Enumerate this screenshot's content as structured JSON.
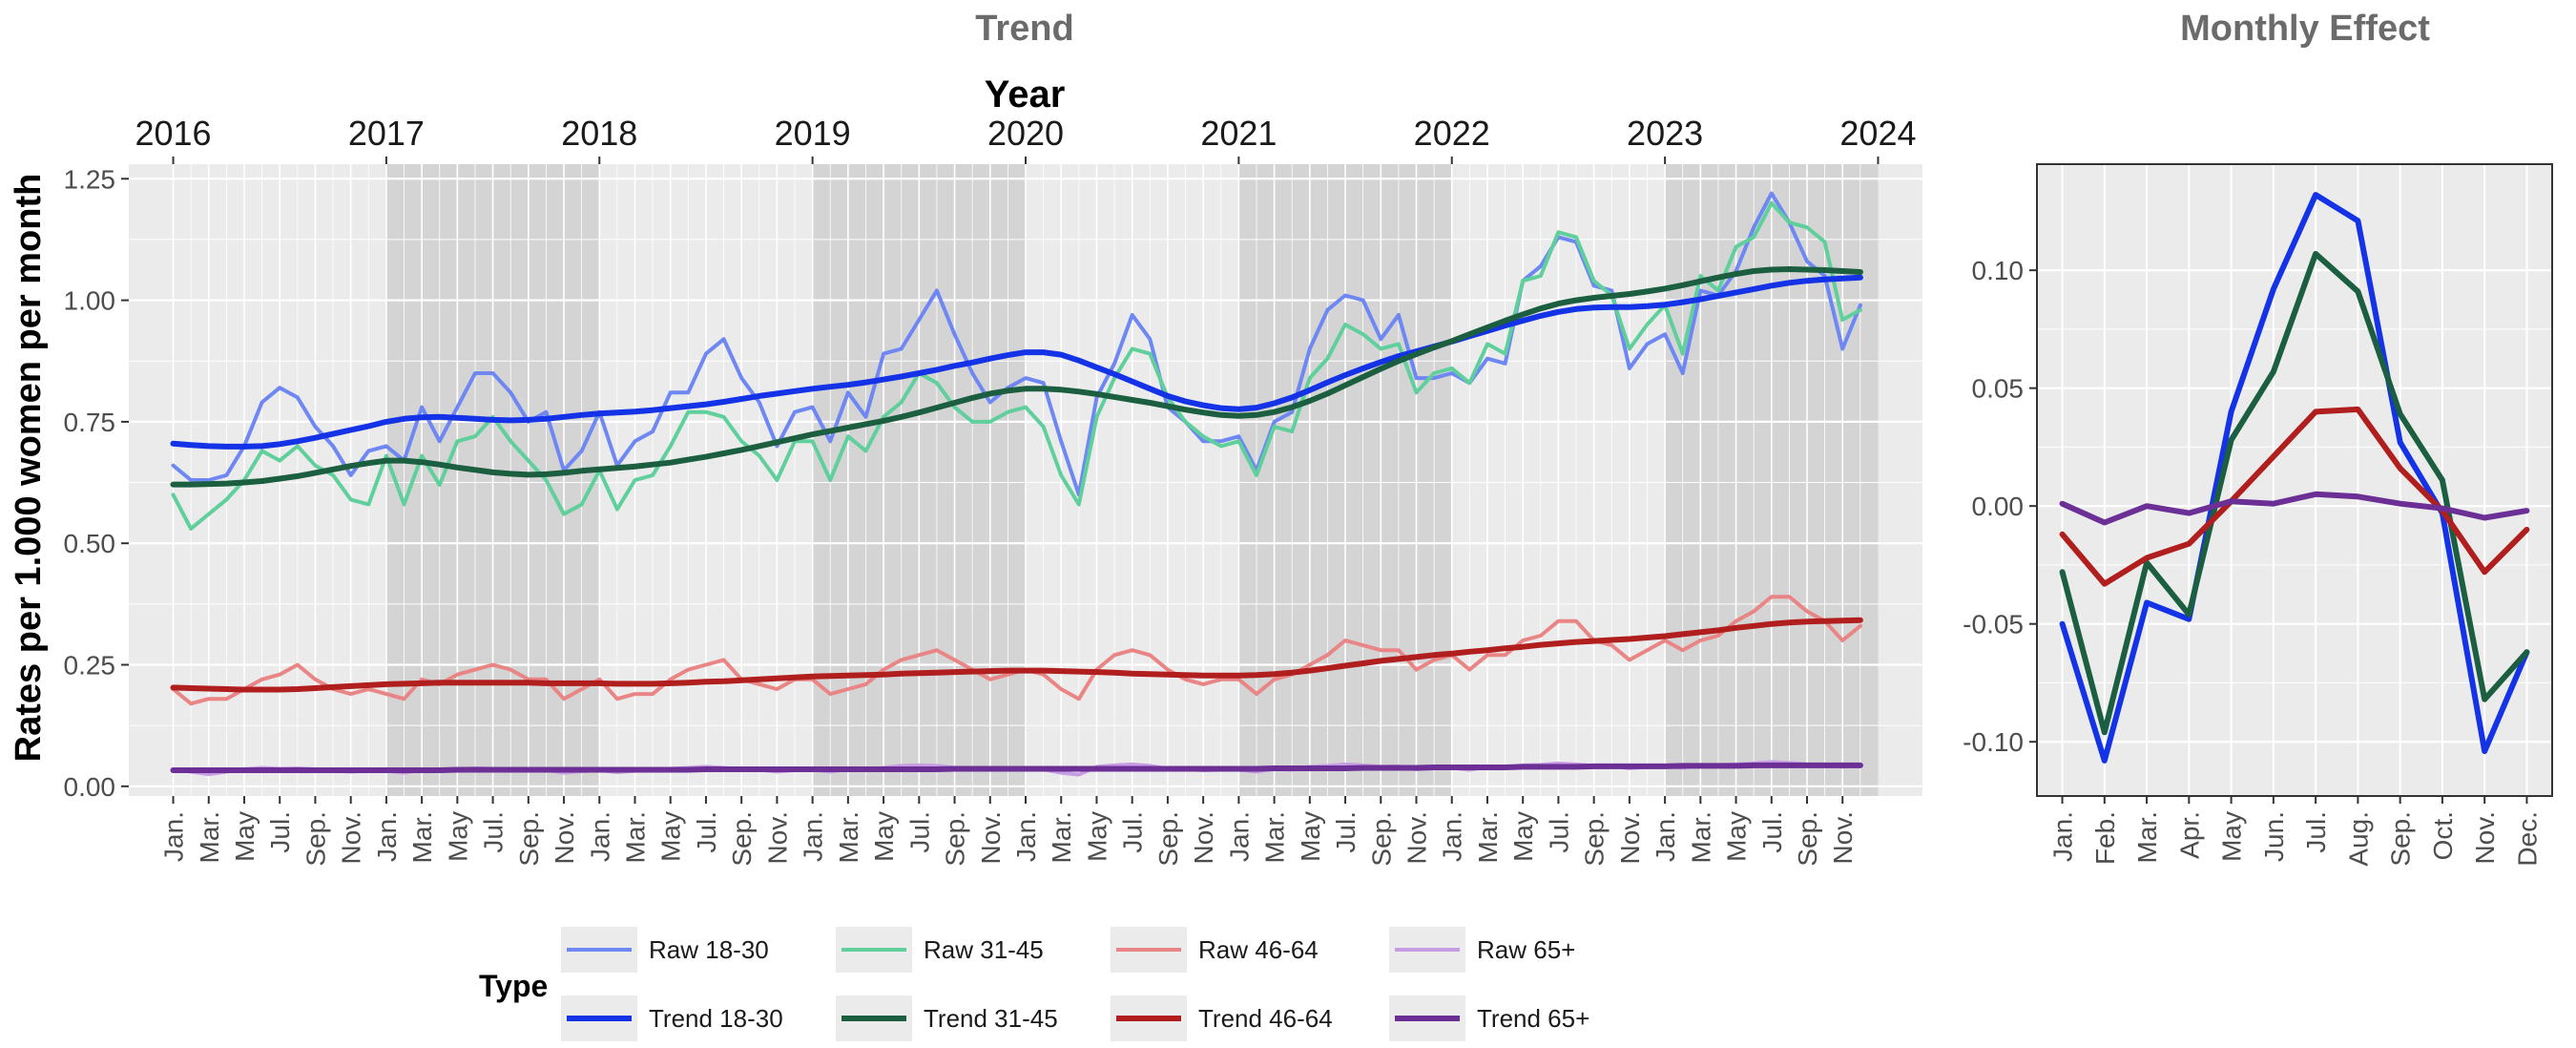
{
  "colors": {
    "raw_18_30": "#6E87F2",
    "trend_18_30": "#1432E6",
    "raw_31_45": "#5FCF9B",
    "trend_31_45": "#1B5E40",
    "raw_46_64": "#E98585",
    "trend_46_64": "#B01E1E",
    "raw_65": "#C89CE3",
    "trend_65": "#6B2F96",
    "panel_bg": "#EBEBEB",
    "shade": "#D4D4D4",
    "grid": "#FFFFFF",
    "title": "#6B6B6B",
    "tick": "#4D4D4D"
  },
  "legend": {
    "title": "Type",
    "items": [
      {
        "label": "Raw 18-30",
        "color": "#6E87F2"
      },
      {
        "label": "Raw 31-45",
        "color": "#5FCF9B"
      },
      {
        "label": "Raw 46-64",
        "color": "#E98585"
      },
      {
        "label": "Raw 65+",
        "color": "#C89CE3"
      },
      {
        "label": "Trend 18-30",
        "color": "#1432E6"
      },
      {
        "label": "Trend 31-45",
        "color": "#1B5E40"
      },
      {
        "label": "Trend 46-64",
        "color": "#B01E1E"
      },
      {
        "label": "Trend 65+",
        "color": "#6B2F96"
      }
    ]
  },
  "chart_data": [
    {
      "type": "line",
      "title": "Trend",
      "top_axis_label": "Year",
      "ylabel": "Rates per 1.000 women per month",
      "xlabel": "",
      "ylim": [
        -0.02,
        1.28
      ],
      "x_unit": "month index from Jan. 2016 (0 = Jan. 2016)",
      "xlim": [
        -2.5,
        98.5
      ],
      "year_ticks": [
        "2016",
        "2017",
        "2018",
        "2019",
        "2020",
        "2021",
        "2022",
        "2023",
        "2024"
      ],
      "year_tick_positions": [
        0,
        12,
        24,
        36,
        48,
        60,
        72,
        84,
        96
      ],
      "shaded_year_bands": [
        [
          12,
          24
        ],
        [
          36,
          48
        ],
        [
          60,
          72
        ],
        [
          84,
          96
        ]
      ],
      "month_tick_labels": [
        "Jan.",
        "Mar.",
        "May",
        "Jul.",
        "Sep.",
        "Nov."
      ],
      "y_ticks": [
        0.0,
        0.25,
        0.5,
        0.75,
        1.0,
        1.25
      ],
      "y_tick_labels": [
        "0.00",
        "0.25",
        "0.50",
        "0.75",
        "1.00",
        "1.25"
      ],
      "grid": true,
      "legend_position": "bottom",
      "series": [
        {
          "name": "Raw 18-30",
          "color": "#6E87F2",
          "width": 4,
          "values": [
            0.66,
            0.63,
            0.63,
            0.64,
            0.7,
            0.79,
            0.82,
            0.8,
            0.74,
            0.7,
            0.64,
            0.69,
            0.7,
            0.67,
            0.78,
            0.71,
            0.78,
            0.85,
            0.85,
            0.81,
            0.75,
            0.77,
            0.65,
            0.69,
            0.77,
            0.66,
            0.71,
            0.73,
            0.81,
            0.81,
            0.89,
            0.92,
            0.84,
            0.79,
            0.7,
            0.77,
            0.78,
            0.71,
            0.81,
            0.76,
            0.89,
            0.9,
            0.96,
            1.02,
            0.93,
            0.85,
            0.79,
            0.82,
            0.84,
            0.83,
            0.71,
            0.6,
            0.8,
            0.87,
            0.97,
            0.92,
            0.78,
            0.75,
            0.71,
            0.71,
            0.72,
            0.65,
            0.75,
            0.77,
            0.9,
            0.98,
            1.01,
            1.0,
            0.92,
            0.97,
            0.84,
            0.84,
            0.85,
            0.83,
            0.88,
            0.87,
            1.04,
            1.07,
            1.13,
            1.12,
            1.03,
            1.02,
            0.86,
            0.91,
            0.93,
            0.85,
            1.02,
            1.01,
            1.06,
            1.15,
            1.22,
            1.16,
            1.08,
            1.05,
            0.9,
            0.99
          ]
        },
        {
          "name": "Raw 31-45",
          "color": "#5FCF9B",
          "width": 4,
          "values": [
            0.6,
            0.53,
            0.56,
            0.59,
            0.63,
            0.69,
            0.67,
            0.7,
            0.66,
            0.64,
            0.59,
            0.58,
            0.68,
            0.58,
            0.68,
            0.62,
            0.71,
            0.72,
            0.76,
            0.71,
            0.67,
            0.63,
            0.56,
            0.58,
            0.65,
            0.57,
            0.63,
            0.64,
            0.7,
            0.77,
            0.77,
            0.76,
            0.71,
            0.68,
            0.63,
            0.71,
            0.71,
            0.63,
            0.72,
            0.69,
            0.76,
            0.79,
            0.85,
            0.83,
            0.78,
            0.75,
            0.75,
            0.77,
            0.78,
            0.74,
            0.64,
            0.58,
            0.76,
            0.84,
            0.9,
            0.89,
            0.8,
            0.75,
            0.72,
            0.7,
            0.71,
            0.64,
            0.74,
            0.73,
            0.84,
            0.88,
            0.95,
            0.93,
            0.9,
            0.91,
            0.81,
            0.85,
            0.86,
            0.83,
            0.91,
            0.89,
            1.04,
            1.05,
            1.14,
            1.13,
            1.04,
            1.01,
            0.9,
            0.95,
            0.99,
            0.89,
            1.05,
            1.02,
            1.11,
            1.13,
            1.2,
            1.16,
            1.15,
            1.12,
            0.96,
            0.98
          ]
        },
        {
          "name": "Raw 46-64",
          "color": "#E98585",
          "width": 4,
          "values": [
            0.2,
            0.17,
            0.18,
            0.18,
            0.2,
            0.22,
            0.23,
            0.25,
            0.22,
            0.2,
            0.19,
            0.2,
            0.19,
            0.18,
            0.22,
            0.21,
            0.23,
            0.24,
            0.25,
            0.24,
            0.22,
            0.22,
            0.18,
            0.2,
            0.22,
            0.18,
            0.19,
            0.19,
            0.22,
            0.24,
            0.25,
            0.26,
            0.22,
            0.21,
            0.2,
            0.22,
            0.22,
            0.19,
            0.2,
            0.21,
            0.24,
            0.26,
            0.27,
            0.28,
            0.26,
            0.24,
            0.22,
            0.23,
            0.24,
            0.23,
            0.2,
            0.18,
            0.24,
            0.27,
            0.28,
            0.27,
            0.24,
            0.22,
            0.21,
            0.22,
            0.22,
            0.19,
            0.22,
            0.23,
            0.25,
            0.27,
            0.3,
            0.29,
            0.28,
            0.28,
            0.24,
            0.26,
            0.27,
            0.24,
            0.27,
            0.27,
            0.3,
            0.31,
            0.34,
            0.34,
            0.3,
            0.29,
            0.26,
            0.28,
            0.3,
            0.28,
            0.3,
            0.31,
            0.34,
            0.36,
            0.39,
            0.39,
            0.36,
            0.34,
            0.3,
            0.33
          ]
        },
        {
          "name": "Raw 65+",
          "color": "#C89CE3",
          "width": 4,
          "values": [
            0.035,
            0.03,
            0.025,
            0.03,
            0.035,
            0.038,
            0.036,
            0.037,
            0.035,
            0.032,
            0.03,
            0.032,
            0.032,
            0.028,
            0.034,
            0.032,
            0.035,
            0.037,
            0.036,
            0.035,
            0.033,
            0.034,
            0.028,
            0.031,
            0.033,
            0.029,
            0.032,
            0.032,
            0.036,
            0.038,
            0.04,
            0.038,
            0.035,
            0.034,
            0.03,
            0.033,
            0.034,
            0.03,
            0.035,
            0.033,
            0.038,
            0.042,
            0.043,
            0.042,
            0.038,
            0.036,
            0.034,
            0.035,
            0.036,
            0.035,
            0.028,
            0.024,
            0.04,
            0.043,
            0.045,
            0.042,
            0.036,
            0.035,
            0.033,
            0.034,
            0.034,
            0.03,
            0.036,
            0.034,
            0.04,
            0.042,
            0.045,
            0.043,
            0.04,
            0.041,
            0.035,
            0.037,
            0.038,
            0.034,
            0.04,
            0.039,
            0.043,
            0.044,
            0.047,
            0.045,
            0.042,
            0.042,
            0.037,
            0.04,
            0.042,
            0.038,
            0.043,
            0.043,
            0.045,
            0.047,
            0.05,
            0.048,
            0.045,
            0.045,
            0.04,
            0.043
          ]
        },
        {
          "name": "Trend 18-30",
          "color": "#1432E6",
          "width": 6,
          "values": [
            0.705,
            0.702,
            0.7,
            0.699,
            0.699,
            0.7,
            0.704,
            0.71,
            0.717,
            0.725,
            0.733,
            0.741,
            0.75,
            0.756,
            0.759,
            0.76,
            0.758,
            0.756,
            0.754,
            0.753,
            0.754,
            0.756,
            0.76,
            0.764,
            0.767,
            0.769,
            0.771,
            0.774,
            0.778,
            0.782,
            0.786,
            0.791,
            0.797,
            0.803,
            0.808,
            0.813,
            0.818,
            0.822,
            0.826,
            0.831,
            0.837,
            0.843,
            0.85,
            0.857,
            0.865,
            0.872,
            0.88,
            0.887,
            0.893,
            0.893,
            0.888,
            0.876,
            0.862,
            0.848,
            0.833,
            0.818,
            0.803,
            0.792,
            0.784,
            0.778,
            0.776,
            0.779,
            0.788,
            0.8,
            0.815,
            0.831,
            0.846,
            0.86,
            0.873,
            0.885,
            0.895,
            0.905,
            0.915,
            0.926,
            0.937,
            0.948,
            0.958,
            0.968,
            0.976,
            0.982,
            0.985,
            0.986,
            0.986,
            0.988,
            0.991,
            0.996,
            1.002,
            1.009,
            1.016,
            1.023,
            1.03,
            1.036,
            1.04,
            1.043,
            1.045,
            1.047
          ]
        },
        {
          "name": "Trend 31-45",
          "color": "#1B5E40",
          "width": 6,
          "values": [
            0.621,
            0.621,
            0.622,
            0.623,
            0.625,
            0.628,
            0.633,
            0.638,
            0.645,
            0.652,
            0.659,
            0.665,
            0.67,
            0.67,
            0.667,
            0.662,
            0.656,
            0.651,
            0.646,
            0.643,
            0.641,
            0.642,
            0.645,
            0.649,
            0.652,
            0.655,
            0.658,
            0.662,
            0.666,
            0.672,
            0.678,
            0.685,
            0.692,
            0.7,
            0.708,
            0.716,
            0.724,
            0.731,
            0.738,
            0.745,
            0.752,
            0.76,
            0.769,
            0.779,
            0.789,
            0.799,
            0.808,
            0.814,
            0.818,
            0.818,
            0.816,
            0.812,
            0.807,
            0.801,
            0.795,
            0.789,
            0.782,
            0.775,
            0.769,
            0.764,
            0.762,
            0.764,
            0.77,
            0.78,
            0.793,
            0.808,
            0.825,
            0.842,
            0.859,
            0.875,
            0.889,
            0.903,
            0.916,
            0.93,
            0.944,
            0.958,
            0.971,
            0.983,
            0.993,
            1.0,
            1.005,
            1.009,
            1.013,
            1.018,
            1.024,
            1.031,
            1.039,
            1.047,
            1.054,
            1.06,
            1.063,
            1.064,
            1.063,
            1.062,
            1.06,
            1.058
          ]
        },
        {
          "name": "Trend 46-64",
          "color": "#B01E1E",
          "width": 6,
          "values": [
            0.203,
            0.202,
            0.201,
            0.2,
            0.199,
            0.199,
            0.199,
            0.2,
            0.202,
            0.204,
            0.206,
            0.208,
            0.21,
            0.211,
            0.212,
            0.213,
            0.213,
            0.213,
            0.213,
            0.213,
            0.213,
            0.212,
            0.212,
            0.212,
            0.212,
            0.211,
            0.211,
            0.211,
            0.212,
            0.213,
            0.215,
            0.216,
            0.218,
            0.22,
            0.222,
            0.224,
            0.226,
            0.227,
            0.228,
            0.229,
            0.23,
            0.232,
            0.233,
            0.234,
            0.235,
            0.236,
            0.237,
            0.238,
            0.238,
            0.238,
            0.237,
            0.236,
            0.235,
            0.234,
            0.232,
            0.231,
            0.23,
            0.229,
            0.228,
            0.228,
            0.228,
            0.229,
            0.231,
            0.234,
            0.238,
            0.243,
            0.248,
            0.253,
            0.258,
            0.262,
            0.266,
            0.27,
            0.273,
            0.277,
            0.28,
            0.284,
            0.287,
            0.291,
            0.294,
            0.297,
            0.299,
            0.301,
            0.303,
            0.306,
            0.309,
            0.313,
            0.317,
            0.321,
            0.326,
            0.33,
            0.334,
            0.337,
            0.339,
            0.34,
            0.341,
            0.342
          ]
        },
        {
          "name": "Trend 65+",
          "color": "#6B2F96",
          "width": 6,
          "values": [
            0.033,
            0.033,
            0.033,
            0.033,
            0.033,
            0.033,
            0.033,
            0.033,
            0.033,
            0.033,
            0.033,
            0.033,
            0.033,
            0.033,
            0.033,
            0.033,
            0.034,
            0.034,
            0.034,
            0.034,
            0.034,
            0.034,
            0.034,
            0.034,
            0.034,
            0.034,
            0.034,
            0.034,
            0.034,
            0.034,
            0.035,
            0.035,
            0.035,
            0.035,
            0.035,
            0.035,
            0.035,
            0.035,
            0.035,
            0.035,
            0.035,
            0.035,
            0.035,
            0.035,
            0.036,
            0.036,
            0.036,
            0.036,
            0.036,
            0.036,
            0.036,
            0.036,
            0.036,
            0.036,
            0.036,
            0.036,
            0.036,
            0.036,
            0.036,
            0.036,
            0.036,
            0.036,
            0.037,
            0.037,
            0.037,
            0.037,
            0.037,
            0.038,
            0.038,
            0.038,
            0.038,
            0.039,
            0.039,
            0.039,
            0.039,
            0.039,
            0.04,
            0.04,
            0.04,
            0.04,
            0.041,
            0.041,
            0.041,
            0.041,
            0.041,
            0.042,
            0.042,
            0.042,
            0.042,
            0.043,
            0.043,
            0.043,
            0.043,
            0.043,
            0.043,
            0.043
          ]
        }
      ]
    },
    {
      "type": "line",
      "title": "Monthly Effect",
      "xlabel": "",
      "ylabel": "",
      "categories": [
        "Jan.",
        "Feb.",
        "Mar.",
        "Apr.",
        "May",
        "Jun.",
        "Jul.",
        "Aug.",
        "Sep.",
        "Oct.",
        "Nov.",
        "Dec."
      ],
      "ylim": [
        -0.123,
        0.145
      ],
      "y_ticks": [
        -0.1,
        -0.05,
        0.0,
        0.05,
        0.1
      ],
      "y_tick_labels": [
        "-0.10",
        "-0.05",
        "0.00",
        "0.05",
        "0.10"
      ],
      "grid": true,
      "series": [
        {
          "name": "18-30",
          "color": "#1432E6",
          "width": 6,
          "values": [
            -0.05,
            -0.108,
            -0.041,
            -0.048,
            0.04,
            0.092,
            0.132,
            0.121,
            0.027,
            -0.003,
            -0.104,
            -0.062
          ]
        },
        {
          "name": "31-45",
          "color": "#1B5E40",
          "width": 6,
          "values": [
            -0.028,
            -0.096,
            -0.024,
            -0.046,
            0.028,
            0.057,
            0.107,
            0.091,
            0.039,
            0.011,
            -0.082,
            -0.062
          ]
        },
        {
          "name": "46-64",
          "color": "#B01E1E",
          "width": 6,
          "values": [
            -0.012,
            -0.033,
            -0.022,
            -0.016,
            0.002,
            0.021,
            0.04,
            0.041,
            0.016,
            -0.002,
            -0.028,
            -0.01
          ]
        },
        {
          "name": "65+",
          "color": "#6B2F96",
          "width": 6,
          "values": [
            0.001,
            -0.007,
            0.0,
            -0.003,
            0.002,
            0.001,
            0.005,
            0.004,
            0.001,
            -0.001,
            -0.005,
            -0.002
          ]
        }
      ]
    }
  ]
}
